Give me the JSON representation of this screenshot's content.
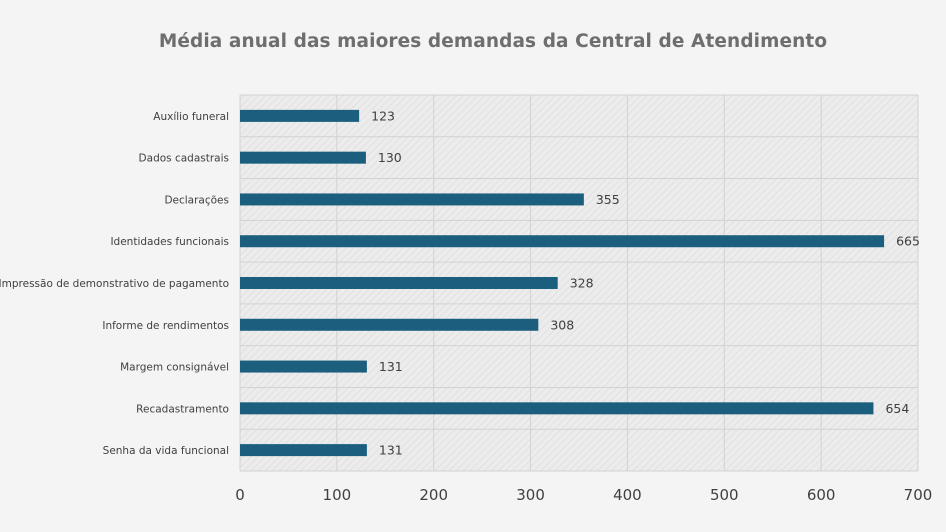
{
  "chart_data": {
    "type": "bar",
    "orientation": "horizontal",
    "title": "Média anual das maiores demandas da Central de Atendimento",
    "categories": [
      "Auxílio funeral",
      "Dados cadastrais",
      "Declarações",
      "Identidades funcionais",
      "Impressão de demonstrativo de pagamento",
      "Informe de rendimentos",
      "Margem consignável",
      "Recadastramento",
      "Senha da vida funcional"
    ],
    "values": [
      123,
      130,
      355,
      665,
      328,
      308,
      131,
      654,
      131
    ],
    "xlim": [
      0,
      700
    ],
    "xticks": [
      0,
      100,
      200,
      300,
      400,
      500,
      600,
      700
    ],
    "grid": true,
    "bar_color": "#1b5e7e",
    "xlabel": "",
    "ylabel": ""
  }
}
